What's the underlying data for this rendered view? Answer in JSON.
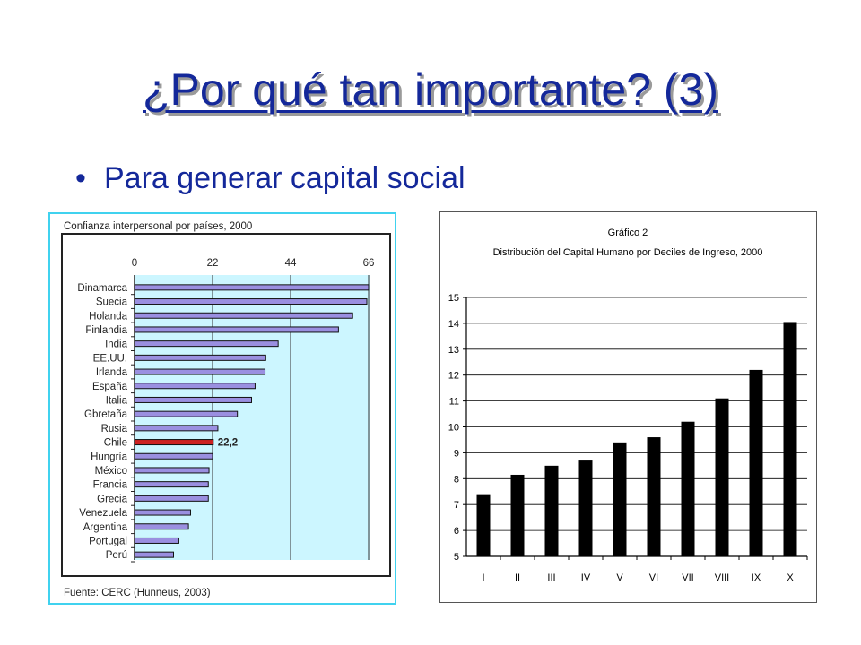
{
  "slide": {
    "title": "¿Por qué tan importante? (3)",
    "bullet": "Para generar capital social",
    "bullet_marker": "•"
  },
  "colors": {
    "title": "#14289a",
    "bar_left": "#9a8fe0",
    "bar_highlight": "#cc2222",
    "plot_bg": "#ccf6ff",
    "bar_right": "#000000"
  },
  "chart_data": [
    {
      "type": "bar",
      "orientation": "horizontal",
      "title": "Confianza interpersonal por países, 2000",
      "source": "Fuente: CERC (Hunneus, 2003)",
      "categories": [
        "Dinamarca",
        "Suecia",
        "Holanda",
        "Finlandia",
        "India",
        "EE.UU.",
        "Irlanda",
        "España",
        "Italia",
        "Gbretaña",
        "Rusia",
        "Chile",
        "Hungría",
        "México",
        "Francia",
        "Grecia",
        "Venezuela",
        "Argentina",
        "Portugal",
        "Perú"
      ],
      "values": [
        66,
        65.5,
        61.5,
        57.5,
        40.5,
        37,
        36.8,
        34,
        33,
        29,
        23.5,
        22.2,
        22,
        21,
        20.8,
        20.8,
        15.8,
        15.2,
        12.5,
        11
      ],
      "highlight": "Chile",
      "data_labels": {
        "Chile": "22,2"
      },
      "xticks": [
        "0",
        "22",
        "44",
        "66"
      ],
      "xlim": [
        0,
        66
      ],
      "grid": "vertical"
    },
    {
      "type": "bar",
      "title": "Gráfico 2",
      "subtitle": "Distribución del Capital Humano por Deciles de Ingreso, 2000",
      "categories": [
        "I",
        "II",
        "III",
        "IV",
        "V",
        "VI",
        "VII",
        "VIII",
        "IX",
        "X"
      ],
      "values": [
        7.4,
        8.15,
        8.5,
        8.7,
        9.4,
        9.6,
        10.2,
        11.1,
        12.2,
        14.05
      ],
      "yticks": [
        "5",
        "6",
        "7",
        "8",
        "9",
        "10",
        "11",
        "12",
        "13",
        "14",
        "15"
      ],
      "ylim": [
        5,
        15
      ],
      "grid": "horizontal"
    }
  ]
}
